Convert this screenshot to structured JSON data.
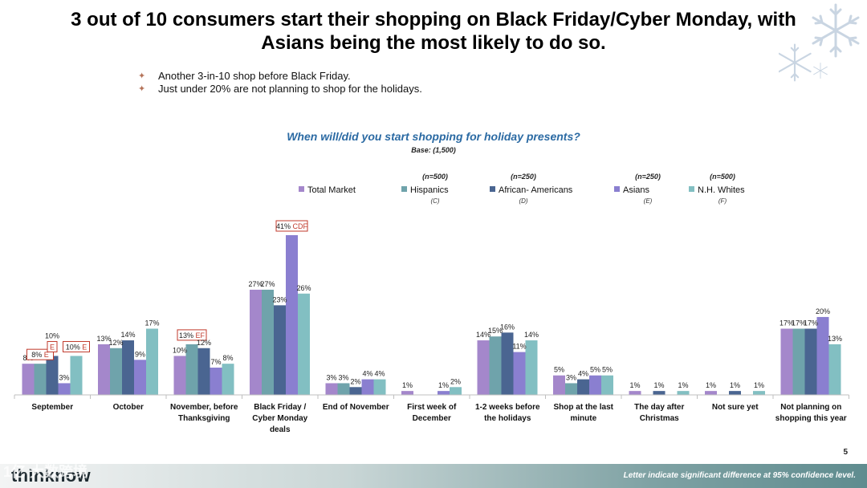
{
  "header": {
    "title": "3 out of 10 consumers start their shopping on Black Friday/Cyber Monday, with\nAsians being the most likely to do so.",
    "bullets": [
      "Another 3-in-10 shop before Black Friday.",
      "Just under 20% are not planning to shop for the holidays."
    ]
  },
  "footer": {
    "brand": "thinknow",
    "note": "Letter indicate significant difference at 95% confidence level.",
    "page": "5",
    "watermark": "1亿 大数跨境"
  },
  "colors": {
    "total": "#a487cb",
    "hispanics": "#6fa3ab",
    "african_americans": "#4a6591",
    "asians": "#8a7fd0",
    "whites": "#82bfc2",
    "axis": "#bfbfbf",
    "question": "#2b6aa3",
    "sig_box": "#c0392b",
    "snow": "#c9d5e2"
  },
  "chart_data": {
    "type": "bar",
    "title": "When will/did you start shopping for holiday presents?",
    "subtitle": "Base: (1,500)",
    "xlabel": "",
    "ylabel": "",
    "ylim": [
      0,
      45
    ],
    "categories": [
      "September",
      "October",
      "November, before\nThanksgiving",
      "Black Friday /\nCyber Monday\ndeals",
      "End of November",
      "First week of\nDecember",
      "1-2 weeks before\nthe holidays",
      "Shop at the last\nminute",
      "The day after\nChristmas",
      "Not sure yet",
      "Not planning on\nshopping this year"
    ],
    "series": [
      {
        "name": "Total Market",
        "n": "",
        "letter": "",
        "colorKey": "total",
        "values": [
          8,
          13,
          10,
          27,
          3,
          1,
          14,
          5,
          1,
          1,
          17
        ]
      },
      {
        "name": "Hispanics",
        "n": "(n=500)",
        "letter": "(C)",
        "colorKey": "hispanics",
        "values": [
          8,
          12,
          13,
          27,
          3,
          0,
          15,
          3,
          0,
          0,
          17
        ]
      },
      {
        "name": "African- Americans",
        "n": "(n=250)",
        "letter": "(D)",
        "colorKey": "african_americans",
        "values": [
          10,
          14,
          12,
          23,
          2,
          0,
          16,
          4,
          1,
          1,
          17
        ]
      },
      {
        "name": "Asians",
        "n": "(n=250)",
        "letter": "(E)",
        "colorKey": "asians",
        "values": [
          3,
          9,
          7,
          41,
          4,
          1,
          11,
          5,
          0,
          0,
          20
        ]
      },
      {
        "name": "N.H. Whites",
        "n": "(n=500)",
        "letter": "(F)",
        "colorKey": "whites",
        "values": [
          10,
          17,
          8,
          26,
          4,
          2,
          14,
          5,
          1,
          1,
          13
        ]
      }
    ],
    "value_labels": [
      [
        "8%",
        "13%",
        "10%",
        "27%",
        "3%",
        "1%",
        "14%",
        "5%",
        "1%",
        "1%",
        "17%"
      ],
      [
        "",
        "12%",
        "",
        "27%",
        "3%",
        "",
        "15%",
        "3%",
        "",
        "",
        "17%"
      ],
      [
        "10%",
        "14%",
        "12%",
        "23%",
        "2%",
        "",
        "16%",
        "4%",
        "1%",
        "1%",
        "17%"
      ],
      [
        "3%",
        "9%",
        "7%",
        "41%",
        "4%",
        "1%",
        "11%",
        "5%",
        "",
        "",
        "20%"
      ],
      [
        "",
        "17%",
        "8%",
        "26%",
        "4%",
        "2%",
        "14%",
        "5%",
        "1%",
        "1%",
        "13%"
      ]
    ],
    "sig_labels": [
      {
        "cat": 0,
        "series": 1,
        "value": "8%",
        "letters": "E"
      },
      {
        "cat": 0,
        "series": 2,
        "value": "",
        "letters": "E"
      },
      {
        "cat": 0,
        "series": 4,
        "value": "10%",
        "letters": "E"
      },
      {
        "cat": 2,
        "series": 1,
        "value": "13%",
        "letters": "EF"
      },
      {
        "cat": 3,
        "series": 3,
        "value": "41%",
        "letters": "CDF"
      }
    ]
  }
}
